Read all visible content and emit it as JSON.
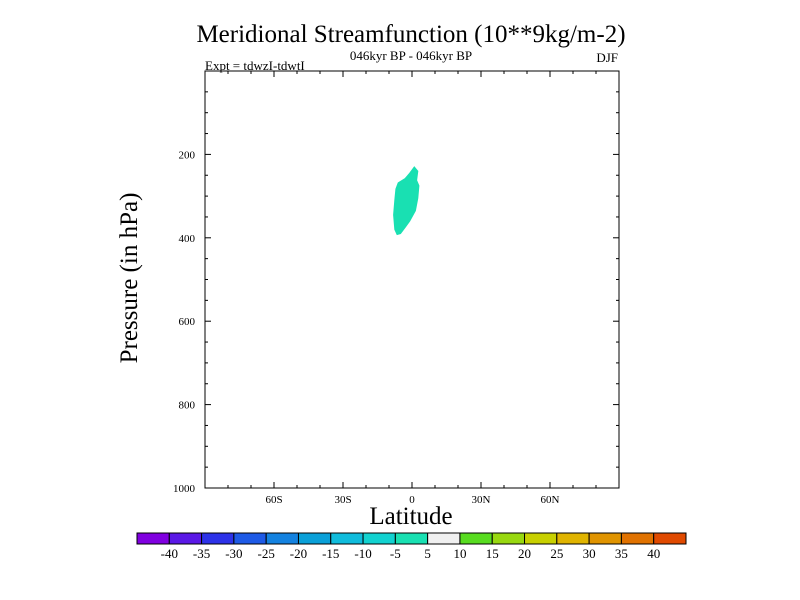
{
  "chart_data": {
    "type": "contour",
    "title": "Meridional Streamfunction (10**9kg/m-2)",
    "subtitle": "046kyr BP - 046kyr BP",
    "experiment_label": "Expt = tdwzI-tdwtI",
    "season_label": "DJF",
    "xlabel": "Latitude",
    "ylabel": "Pressure (in hPa)",
    "xlim": [
      -90,
      90
    ],
    "ylim": [
      1000,
      0
    ],
    "y_scale": "linear (inverted)",
    "x_ticks": [
      {
        "value": -60,
        "label": "60S"
      },
      {
        "value": -30,
        "label": "30S"
      },
      {
        "value": 0,
        "label": "0"
      },
      {
        "value": 30,
        "label": "30N"
      },
      {
        "value": 60,
        "label": "60N"
      }
    ],
    "y_ticks": [
      {
        "value": 200,
        "label": "200"
      },
      {
        "value": 400,
        "label": "400"
      },
      {
        "value": 600,
        "label": "600"
      },
      {
        "value": 800,
        "label": "800"
      },
      {
        "value": 1000,
        "label": "1000"
      }
    ],
    "y_minor_step": 50,
    "x_minor_step": 10,
    "regions": [
      {
        "level_range": [
          -10,
          -5
        ],
        "color": "#19e0b2",
        "points": [
          [
            1,
            230
          ],
          [
            2.5,
            240
          ],
          [
            2,
            262
          ],
          [
            3,
            275
          ],
          [
            2.5,
            305
          ],
          [
            1.5,
            335
          ],
          [
            -1,
            360
          ],
          [
            -3,
            375
          ],
          [
            -5,
            390
          ],
          [
            -6.5,
            392
          ],
          [
            -7.5,
            380
          ],
          [
            -8,
            345
          ],
          [
            -7.5,
            310
          ],
          [
            -7,
            283
          ],
          [
            -6,
            268
          ],
          [
            -3,
            258
          ],
          [
            -1,
            245
          ]
        ]
      }
    ],
    "colorbar": {
      "levels": [
        "-40",
        "-35",
        "-30",
        "-25",
        "-20",
        "-15",
        "-10",
        "-5",
        "5",
        "10",
        "15",
        "20",
        "25",
        "30",
        "35",
        "40"
      ],
      "colors": [
        "#8000e0",
        "#5a18e6",
        "#2d32e8",
        "#1e5ae6",
        "#1482e0",
        "#0aa0d8",
        "#10bcdc",
        "#12d2d0",
        "#19e0b2",
        "#f0f0f0",
        "#58dc20",
        "#98d810",
        "#c8d000",
        "#e0b400",
        "#e09400",
        "#e07200",
        "#e04a00"
      ]
    }
  }
}
